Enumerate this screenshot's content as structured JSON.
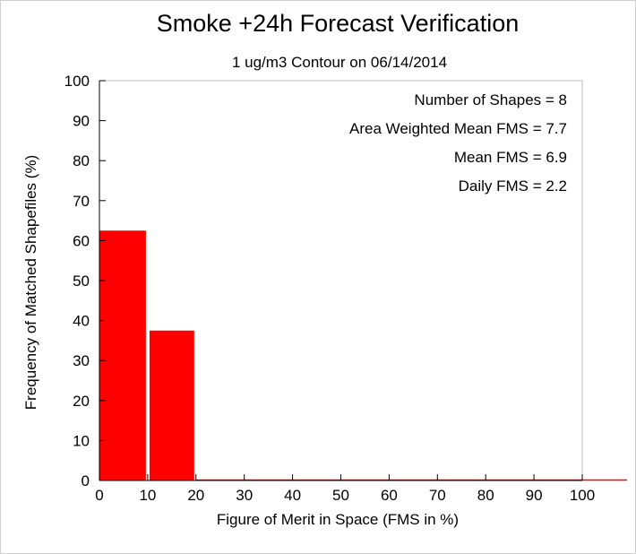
{
  "chart_data": {
    "type": "bar",
    "title": "Smoke +24h Forecast Verification",
    "subtitle": "1 ug/m3 Contour on 06/14/2014",
    "xlabel": "Figure of Merit in Space (FMS in %)",
    "ylabel": "Frequency of Matched Shapefiles (%)",
    "xlim": [
      0,
      100
    ],
    "ylim": [
      0,
      100
    ],
    "x_ticks": [
      "0",
      "10",
      "20",
      "30",
      "40",
      "50",
      "60",
      "70",
      "80",
      "90",
      "100"
    ],
    "y_ticks": [
      "0",
      "10",
      "20",
      "30",
      "40",
      "50",
      "60",
      "70",
      "80",
      "90",
      "100"
    ],
    "bins": [
      {
        "from": 0,
        "to": 10,
        "value": 62.5
      },
      {
        "from": 10,
        "to": 20,
        "value": 37.5
      }
    ],
    "bar_color": "#ff0000",
    "annotations": [
      "Number of Shapes = 8",
      "Area Weighted Mean FMS = 7.7",
      "Mean FMS = 6.9",
      "Daily FMS = 2.2"
    ],
    "grid": false,
    "legend": "none"
  }
}
